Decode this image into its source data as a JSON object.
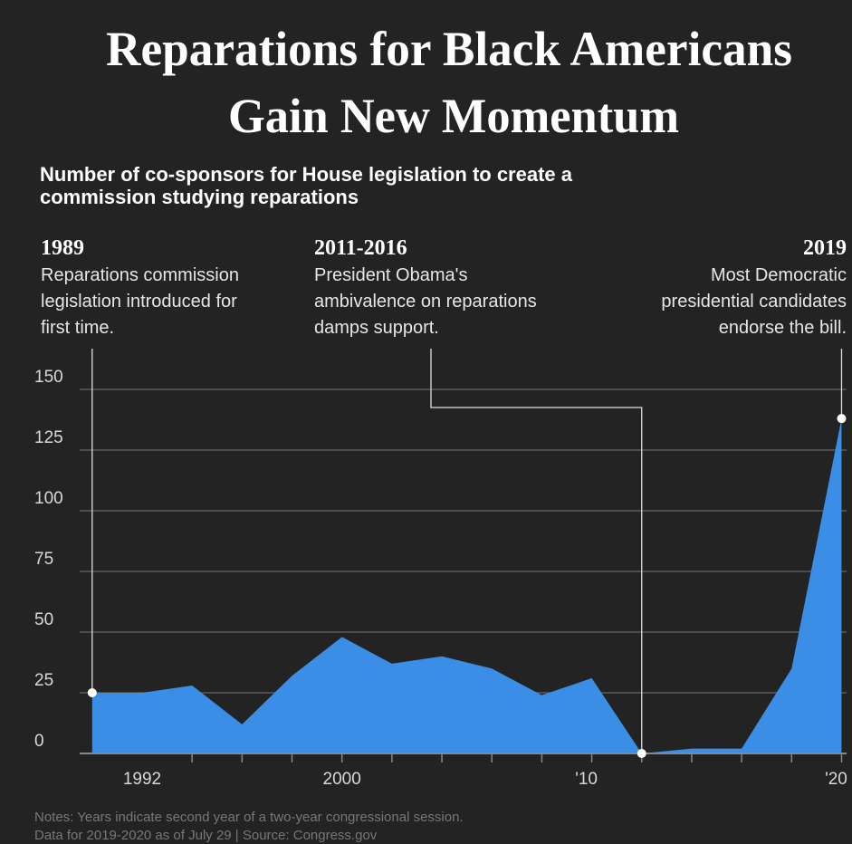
{
  "chart_data": {
    "type": "area",
    "title": [
      "Reparations for Black Americans",
      "Gain New Momentum"
    ],
    "subtitle": [
      "Number of co-sponsors for House legislation to create a",
      "commission studying reparations"
    ],
    "annotations": [
      {
        "heading": "1989",
        "lines": [
          "Reparations commission",
          "legislation introduced for",
          "first time."
        ]
      },
      {
        "heading": "2011-2016",
        "lines": [
          "President Obama's",
          "ambivalence on reparations",
          "damps support."
        ]
      },
      {
        "heading": "2019",
        "lines": [
          "Most Democratic",
          "presidential candidates",
          "endorse the bill."
        ]
      }
    ],
    "x": [
      1990,
      1992,
      1994,
      1996,
      1998,
      2000,
      2002,
      2004,
      2006,
      2008,
      2010,
      2012,
      2014,
      2016,
      2018,
      2020
    ],
    "values": [
      25,
      25,
      28,
      12,
      32,
      48,
      37,
      40,
      35,
      24,
      31,
      0,
      2,
      2,
      35,
      138
    ],
    "color": "#3b8ee6",
    "xlim": [
      1989.5,
      2020.2
    ],
    "ylim": [
      0,
      150
    ],
    "xticks": [
      1992,
      2000,
      {
        "value": 2010,
        "label": "'10"
      },
      {
        "value": 2020,
        "label": "'20"
      }
    ],
    "xminorticks": [
      1994,
      1996,
      1998,
      2000,
      2002,
      2004,
      2006,
      2008,
      2010,
      2012,
      2014,
      2016,
      2018,
      2020
    ],
    "yticks": [
      0,
      25,
      50,
      75,
      100,
      125,
      150
    ],
    "grid": true,
    "notes": [
      "Notes: Years indicate second year of a two-year congressional session.",
      "Data for 2019-2020 as of July 29 | Source: Congress.gov"
    ]
  }
}
